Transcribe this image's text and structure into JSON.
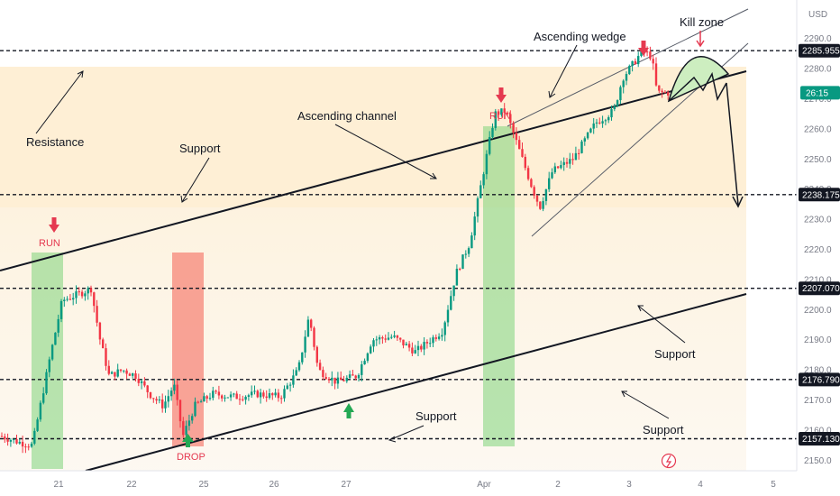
{
  "chart_data": {
    "type": "candlestick",
    "currency": "USD",
    "x_ticks": [
      "21",
      "22",
      "25",
      "26",
      "27",
      "Apr",
      "2",
      "3",
      "4",
      "5"
    ],
    "y_ticks": [
      2150,
      2160,
      2170,
      2180,
      2190,
      2200,
      2210,
      2220,
      2230,
      2240,
      2250,
      2260,
      2270,
      2280,
      2290
    ],
    "y_range": [
      2146.5,
      2298
    ],
    "levels": [
      {
        "value": 2285.955,
        "label": "2285.955"
      },
      {
        "value": 2238.175,
        "label": "2238.175"
      },
      {
        "value": 2207.07,
        "label": "2207.070"
      },
      {
        "value": 2176.79,
        "label": "2176.790"
      },
      {
        "value": 2157.13,
        "label": "2157.130"
      }
    ],
    "current_price_tag": "26:15",
    "current_price": 2272,
    "up_color": "#089981",
    "down_color": "#f23645",
    "key_points": [
      {
        "x": 0,
        "y": 2158
      },
      {
        "x": 20,
        "y": 2156
      },
      {
        "x": 35,
        "y": 2155
      },
      {
        "x": 55,
        "y": 2185
      },
      {
        "x": 68,
        "y": 2203
      },
      {
        "x": 85,
        "y": 2205
      },
      {
        "x": 100,
        "y": 2207
      },
      {
        "x": 110,
        "y": 2190
      },
      {
        "x": 120,
        "y": 2178
      },
      {
        "x": 135,
        "y": 2180
      },
      {
        "x": 150,
        "y": 2178
      },
      {
        "x": 165,
        "y": 2172
      },
      {
        "x": 180,
        "y": 2168
      },
      {
        "x": 192,
        "y": 2175
      },
      {
        "x": 202,
        "y": 2158
      },
      {
        "x": 215,
        "y": 2168
      },
      {
        "x": 235,
        "y": 2172
      },
      {
        "x": 260,
        "y": 2171
      },
      {
        "x": 285,
        "y": 2172
      },
      {
        "x": 310,
        "y": 2171
      },
      {
        "x": 330,
        "y": 2180
      },
      {
        "x": 342,
        "y": 2198
      },
      {
        "x": 352,
        "y": 2180
      },
      {
        "x": 372,
        "y": 2176
      },
      {
        "x": 395,
        "y": 2178
      },
      {
        "x": 412,
        "y": 2190
      },
      {
        "x": 435,
        "y": 2191
      },
      {
        "x": 460,
        "y": 2186
      },
      {
        "x": 490,
        "y": 2193
      },
      {
        "x": 505,
        "y": 2212
      },
      {
        "x": 520,
        "y": 2222
      },
      {
        "x": 535,
        "y": 2245
      },
      {
        "x": 548,
        "y": 2265
      },
      {
        "x": 560,
        "y": 2266
      },
      {
        "x": 575,
        "y": 2253
      },
      {
        "x": 590,
        "y": 2240
      },
      {
        "x": 598,
        "y": 2234
      },
      {
        "x": 612,
        "y": 2246
      },
      {
        "x": 635,
        "y": 2250
      },
      {
        "x": 660,
        "y": 2262
      },
      {
        "x": 680,
        "y": 2266
      },
      {
        "x": 690,
        "y": 2277
      },
      {
        "x": 700,
        "y": 2281
      },
      {
        "x": 712,
        "y": 2286
      },
      {
        "x": 722,
        "y": 2284
      },
      {
        "x": 728,
        "y": 2272
      },
      {
        "x": 742,
        "y": 2272
      }
    ],
    "annotations": {
      "resistance": "Resistance",
      "support_left": "Support",
      "ascending_channel": "Ascending channel",
      "ascending_wedge": "Ascending wedge",
      "kill_zone": "Kill zone",
      "support_right_upper": "Support",
      "support_bottom_mid": "Support",
      "support_right_lower": "Support",
      "run_left": "RUN",
      "run_mid": "RUN",
      "drop": "DROP"
    }
  }
}
